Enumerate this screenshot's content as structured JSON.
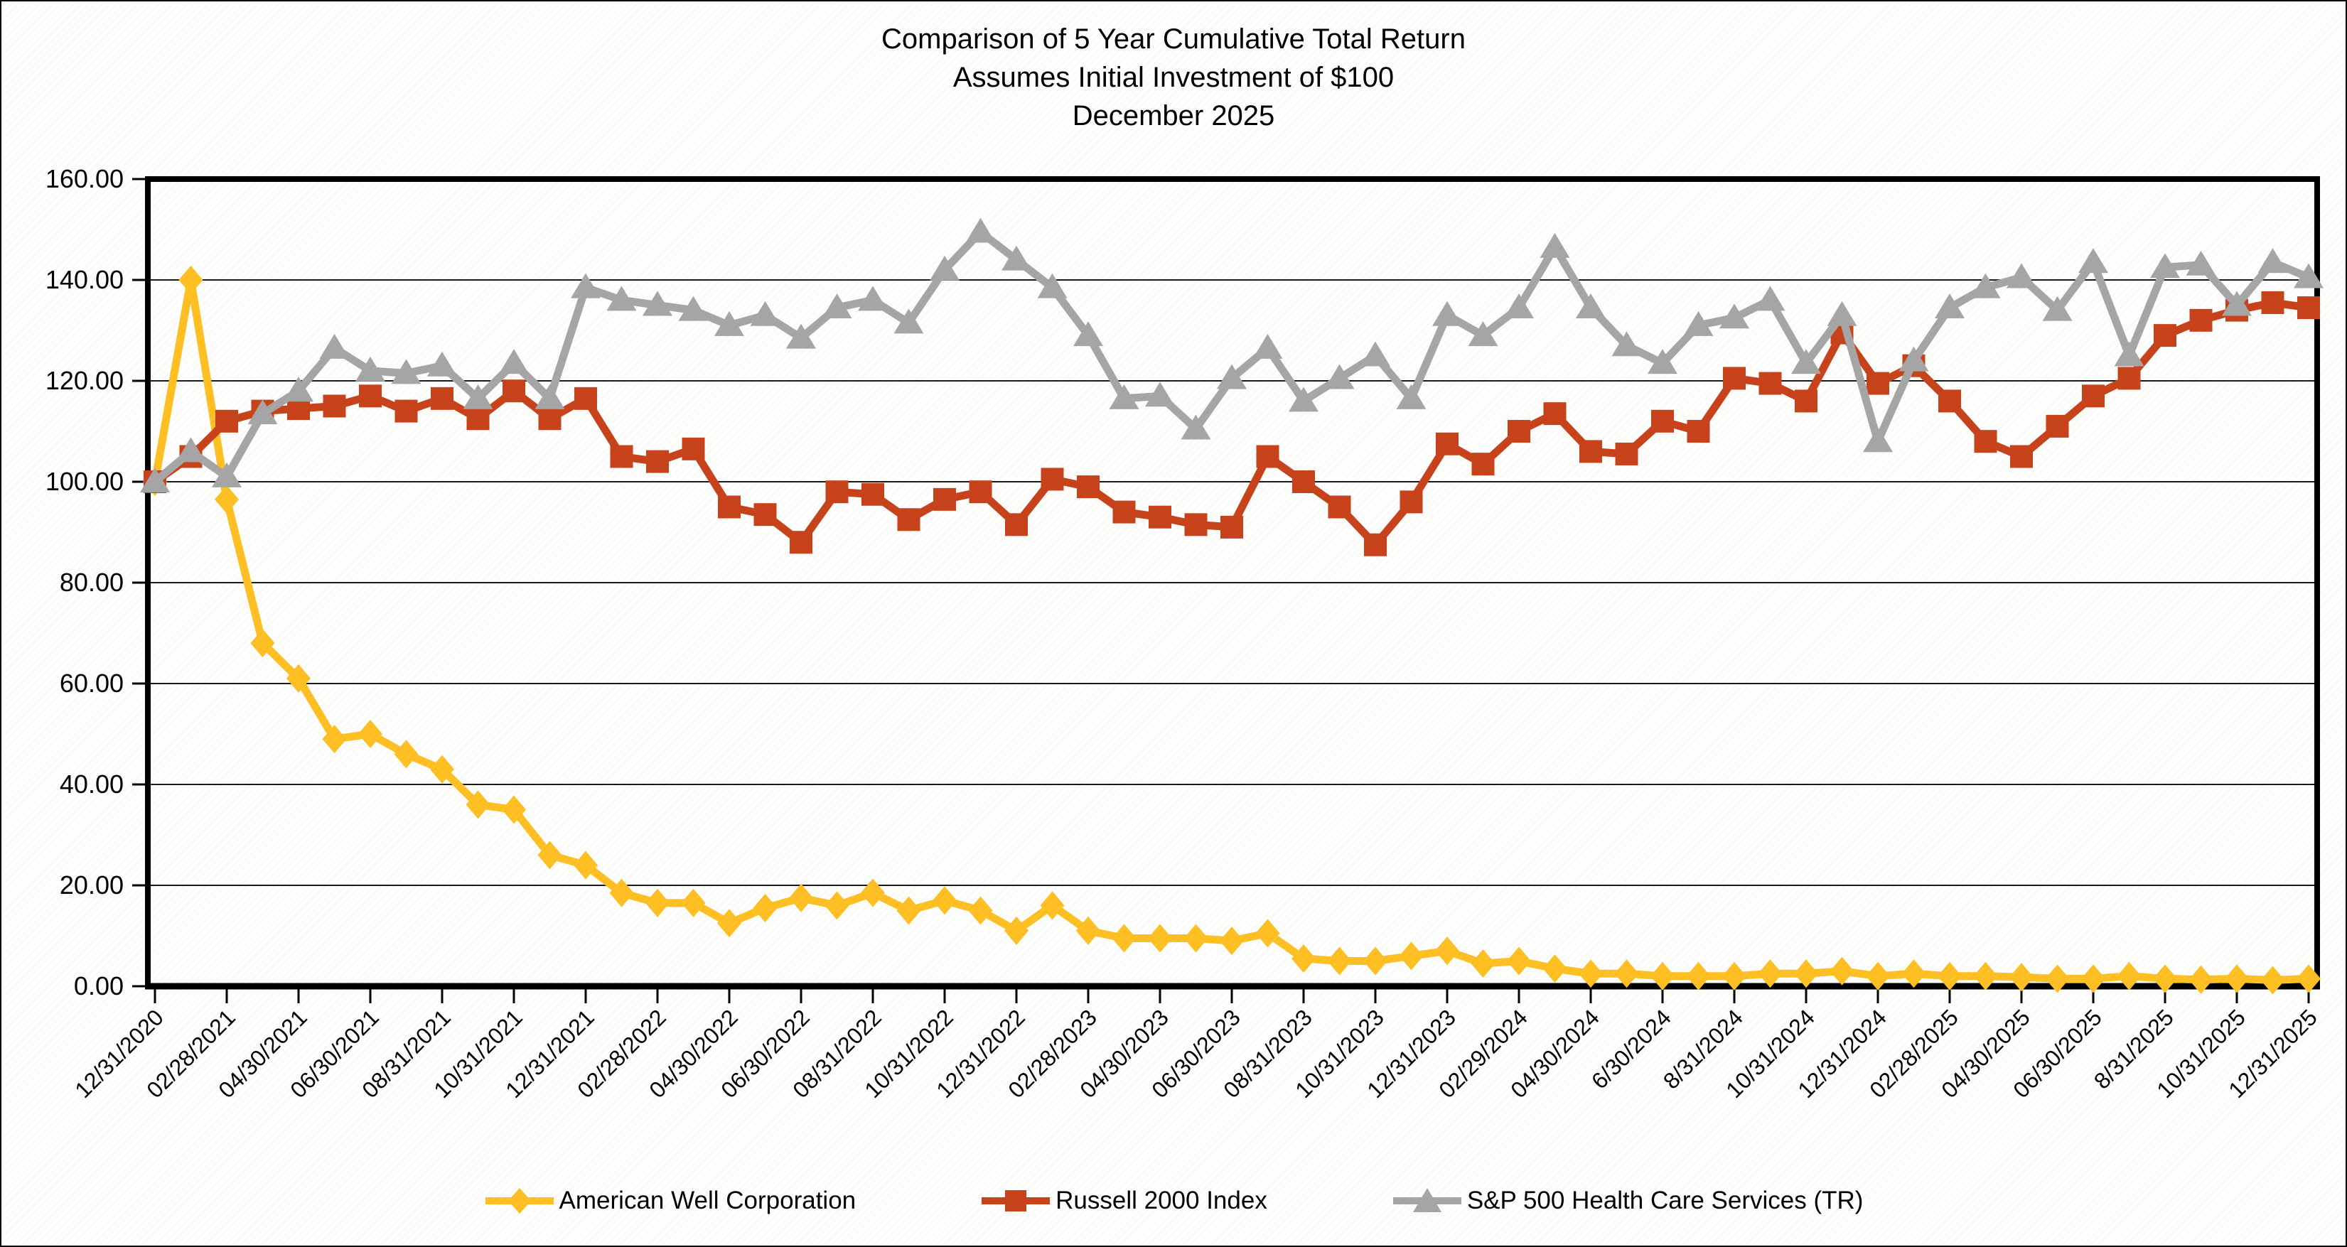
{
  "title": {
    "line1": "Comparison of 5 Year Cumulative Total Return",
    "line2": "Assumes Initial Investment of $100",
    "line3": "December 2025"
  },
  "chart_data": {
    "type": "line",
    "title": "Comparison of 5 Year Cumulative Total Return",
    "subtitle": "Assumes Initial Investment of $100",
    "period_label": "December 2025",
    "grid": true,
    "legend_position": "bottom",
    "ylim": [
      0,
      160
    ],
    "y_ticks": [
      0,
      20,
      40,
      60,
      80,
      100,
      120,
      140,
      160
    ],
    "y_tick_labels": [
      "0.00",
      "20.00",
      "40.00",
      "60.00",
      "80.00",
      "100.00",
      "120.00",
      "140.00",
      "160.00"
    ],
    "x": [
      "12/31/2020",
      "1/31/2021",
      "2/28/2021",
      "3/31/2021",
      "4/30/2021",
      "5/31/2021",
      "6/30/2021",
      "7/31/2021",
      "8/31/2021",
      "9/30/2021",
      "10/31/2021",
      "11/30/2021",
      "12/31/2021",
      "1/31/2022",
      "2/28/2022",
      "3/31/2022",
      "4/30/2022",
      "5/31/2022",
      "6/30/2022",
      "7/31/2022",
      "8/31/2022",
      "9/30/2022",
      "10/31/2022",
      "11/30/2022",
      "12/31/2022",
      "1/31/2023",
      "2/28/2023",
      "3/31/2023",
      "4/30/2023",
      "5/31/2023",
      "6/30/2023",
      "7/31/2023",
      "8/31/2023",
      "9/30/2023",
      "10/31/2023",
      "11/30/2023",
      "12/31/2023",
      "1/31/2024",
      "2/29/2024",
      "3/31/2024",
      "4/30/2024",
      "5/31/2024",
      "6/30/2024",
      "7/31/2024",
      "8/31/2024",
      "9/30/2024",
      "10/31/2024",
      "11/30/2024",
      "12/31/2024",
      "1/31/2025",
      "2/28/2025",
      "3/31/2025",
      "4/30/2025",
      "5/31/2025",
      "6/30/2025",
      "7/31/2025",
      "8/31/2025",
      "9/30/2025",
      "10/31/2025",
      "11/30/2025",
      "12/31/2025"
    ],
    "x_tick_labels": [
      "12/31/2020",
      "02/28/2021",
      "04/30/2021",
      "06/30/2021",
      "08/31/2021",
      "10/31/2021",
      "12/31/2021",
      "02/28/2022",
      "04/30/2022",
      "06/30/2022",
      "08/31/2022",
      "10/31/2022",
      "12/31/2022",
      "02/28/2023",
      "04/30/2023",
      "06/30/2023",
      "08/31/2023",
      "10/31/2023",
      "12/31/2023",
      "02/29/2024",
      "04/30/2024",
      "6/30/2024",
      "8/31/2024",
      "10/31/2024",
      "12/31/2024",
      "02/28/2025",
      "04/30/2025",
      "06/30/2025",
      "8/31/2025",
      "10/31/2025",
      "12/31/2025"
    ],
    "x_tick_every": 2,
    "series": [
      {
        "name": "American Well Corporation",
        "color": "#FFC023",
        "marker": "diamond",
        "values": [
          100,
          140,
          96.5,
          68,
          61,
          49,
          50,
          46,
          43,
          36,
          35,
          26,
          24,
          18.5,
          16.5,
          16.5,
          12.5,
          15.5,
          17.5,
          16,
          18.5,
          15,
          17,
          15,
          11,
          16,
          11,
          9.5,
          9.5,
          9.5,
          9,
          10.5,
          5.5,
          5,
          5,
          6,
          7,
          4.5,
          5,
          3.5,
          2.5,
          2.5,
          2,
          2,
          2,
          2.5,
          2.5,
          3,
          2,
          2.5,
          2,
          2,
          1.8,
          1.5,
          1.5,
          2,
          1.5,
          1.3,
          1.5,
          1.2,
          1.5
        ]
      },
      {
        "name": "Russell 2000 Index",
        "color": "#C8431B",
        "marker": "square",
        "values": [
          100,
          105,
          112,
          114,
          114.5,
          115,
          117,
          114,
          116.5,
          112.5,
          118,
          112.5,
          116.5,
          105,
          104,
          106.5,
          95,
          93.5,
          88,
          98,
          97.5,
          92.5,
          96.5,
          98,
          91.5,
          100.5,
          99,
          94,
          93,
          91.5,
          91,
          105,
          100,
          95,
          87.5,
          96,
          107.5,
          103.5,
          110,
          113.5,
          106,
          105.5,
          112,
          110,
          120.5,
          119.5,
          116,
          129.5,
          119.5,
          123,
          116,
          108,
          105,
          111,
          117,
          120.5,
          129,
          132,
          134,
          135.5,
          134.5
        ]
      },
      {
        "name": "S&P 500 Health Care Services (TR)",
        "color": "#A6A6A6",
        "marker": "triangle",
        "values": [
          100,
          106,
          101,
          113.5,
          118,
          126.5,
          122,
          121.5,
          123,
          116.5,
          123.5,
          116.5,
          138.5,
          136,
          135,
          134,
          131,
          133,
          128.5,
          134.5,
          136,
          131.5,
          142,
          149.5,
          144,
          138.5,
          129,
          116.5,
          117,
          110.5,
          120.5,
          126.5,
          116,
          120.5,
          125,
          116.5,
          133,
          129,
          134.5,
          146.5,
          134.5,
          127,
          123.5,
          131,
          132.5,
          136,
          123.5,
          133,
          108,
          124,
          134.5,
          138.5,
          140.5,
          134,
          143.5,
          125,
          142.5,
          143,
          135,
          143.5,
          140.5
        ]
      }
    ]
  }
}
